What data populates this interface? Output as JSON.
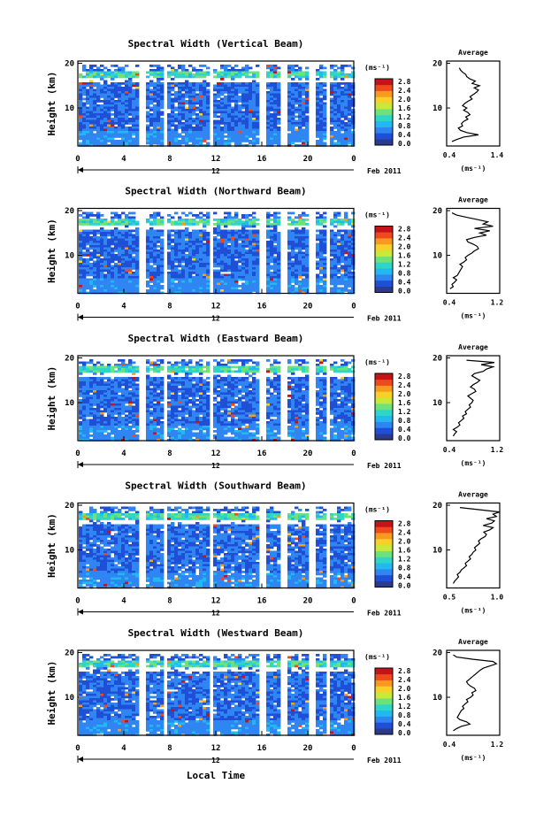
{
  "figure": {
    "xlabel": "Local Time",
    "date_label": "Feb 2011",
    "day_label": "12",
    "colorbar_unit": "(ms⁻¹)",
    "avg_title": "Average",
    "avg_unit": "(ms⁻¹)"
  },
  "colors": {
    "colormap": [
      "#2b3a8f",
      "#1f4fd6",
      "#2f86f2",
      "#22b9f0",
      "#2fd6c8",
      "#6ee27a",
      "#c8e83a",
      "#f7d02a",
      "#f79a1f",
      "#ee4a1c",
      "#c4141a"
    ],
    "no_data": "#ffffff"
  },
  "chart_data": [
    {
      "type": "heatmap",
      "title": "Spectral Width (Vertical Beam)",
      "ylabel": "Height (km)",
      "x_ticks": [
        "0",
        "4",
        "8",
        "12",
        "16",
        "20",
        "0"
      ],
      "xlim": [
        0,
        24
      ],
      "ylim": [
        1.5,
        20.5
      ],
      "y_ticks": [
        "20",
        "10"
      ],
      "colorbar_ticks": [
        "2.8",
        "2.4",
        "2.0",
        "1.6",
        "1.2",
        "0.8",
        "0.4",
        "0.0"
      ],
      "clim": [
        0.0,
        3.0
      ],
      "data_gaps_hours": [
        [
          5.3,
          5.8
        ],
        [
          7.4,
          7.8
        ],
        [
          11.6,
          11.9
        ],
        [
          15.8,
          16.5
        ],
        [
          17.6,
          18.1
        ],
        [
          20.1,
          20.6
        ],
        [
          21.7,
          22.0
        ]
      ],
      "average_profile": {
        "xlim": [
          0.4,
          1.4
        ],
        "x_ticks": [
          "0.4",
          "1.4"
        ],
        "y_ticks": [
          "20",
          "10"
        ],
        "height_km": [
          2.5,
          3,
          3.5,
          4,
          4.5,
          5,
          5.5,
          6,
          6.5,
          7,
          7.5,
          8,
          8.5,
          9,
          9.5,
          10,
          10.5,
          11,
          11.5,
          12,
          12.5,
          13,
          13.5,
          14,
          14.5,
          15,
          15.5,
          16,
          16.5,
          17,
          17.5,
          18,
          18.5,
          19
        ],
        "width_ms": [
          0.5,
          0.6,
          0.72,
          1.0,
          0.78,
          0.66,
          0.62,
          0.7,
          0.68,
          0.72,
          0.8,
          0.76,
          0.84,
          0.8,
          0.72,
          0.78,
          0.7,
          0.74,
          0.8,
          0.88,
          0.84,
          0.9,
          0.96,
          1.0,
          0.92,
          1.02,
          0.88,
          0.94,
          0.84,
          0.78,
          0.76,
          0.7,
          0.66,
          0.64
        ]
      }
    },
    {
      "type": "heatmap",
      "title": "Spectral Width (Northward Beam)",
      "ylabel": "Height (km)",
      "x_ticks": [
        "0",
        "4",
        "8",
        "12",
        "16",
        "20",
        "0"
      ],
      "xlim": [
        0,
        24
      ],
      "ylim": [
        1.5,
        20.5
      ],
      "y_ticks": [
        "20",
        "10"
      ],
      "colorbar_ticks": [
        "2.8",
        "2.4",
        "2.0",
        "1.6",
        "1.2",
        "0.8",
        "0.4",
        "0.0"
      ],
      "clim": [
        0.0,
        3.0
      ],
      "data_gaps_hours": [
        [
          5.3,
          5.8
        ],
        [
          7.4,
          7.8
        ],
        [
          11.6,
          11.9
        ],
        [
          15.8,
          16.5
        ],
        [
          17.6,
          18.1
        ],
        [
          20.1,
          20.6
        ],
        [
          21.7,
          22.0
        ]
      ],
      "average_profile": {
        "xlim": [
          0.4,
          1.2
        ],
        "x_ticks": [
          "0.4",
          "1.2"
        ],
        "y_ticks": [
          "20",
          "10"
        ],
        "height_km": [
          2.5,
          3,
          3.5,
          4,
          4.5,
          5,
          5.5,
          6,
          6.5,
          7,
          7.5,
          8,
          8.5,
          9,
          9.5,
          10,
          10.5,
          11,
          11.5,
          12,
          12.5,
          13,
          13.5,
          14,
          14.5,
          15,
          15.5,
          16,
          16.5,
          17,
          17.5,
          18,
          18.5,
          19,
          19.5
        ],
        "width_ms": [
          0.45,
          0.5,
          0.48,
          0.52,
          0.55,
          0.5,
          0.56,
          0.58,
          0.6,
          0.62,
          0.64,
          0.6,
          0.66,
          0.7,
          0.68,
          0.72,
          0.78,
          0.82,
          0.88,
          0.86,
          0.8,
          0.72,
          0.7,
          0.82,
          1.0,
          0.9,
          1.05,
          0.82,
          1.1,
          0.95,
          1.02,
          0.86,
          0.7,
          0.55,
          0.48
        ]
      }
    },
    {
      "type": "heatmap",
      "title": "Spectral Width (Eastward Beam)",
      "ylabel": "Height (km)",
      "x_ticks": [
        "0",
        "4",
        "8",
        "12",
        "16",
        "20",
        "0"
      ],
      "xlim": [
        0,
        24
      ],
      "ylim": [
        1.5,
        20.5
      ],
      "y_ticks": [
        "20",
        "10"
      ],
      "colorbar_ticks": [
        "2.8",
        "2.4",
        "2.0",
        "1.6",
        "1.2",
        "0.8",
        "0.4",
        "0.0"
      ],
      "clim": [
        0.0,
        3.0
      ],
      "data_gaps_hours": [
        [
          5.3,
          5.8
        ],
        [
          7.4,
          7.8
        ],
        [
          11.6,
          11.9
        ],
        [
          15.8,
          16.5
        ],
        [
          17.6,
          18.1
        ],
        [
          20.1,
          20.6
        ],
        [
          21.7,
          22.0
        ]
      ],
      "average_profile": {
        "xlim": [
          0.4,
          1.2
        ],
        "x_ticks": [
          "0.4",
          "1.2"
        ],
        "y_ticks": [
          "20",
          "10"
        ],
        "height_km": [
          2.5,
          3,
          3.5,
          4,
          4.5,
          5,
          5.5,
          6,
          6.5,
          7,
          7.5,
          8,
          8.5,
          9,
          9.5,
          10,
          10.5,
          11,
          11.5,
          12,
          12.5,
          13,
          13.5,
          14,
          14.5,
          15,
          15.5,
          16,
          16.5,
          17,
          17.5,
          18,
          18.5,
          19,
          19.5
        ],
        "width_ms": [
          0.5,
          0.52,
          0.55,
          0.5,
          0.56,
          0.6,
          0.58,
          0.62,
          0.66,
          0.64,
          0.7,
          0.68,
          0.72,
          0.76,
          0.74,
          0.78,
          0.8,
          0.76,
          0.72,
          0.78,
          0.84,
          0.82,
          0.76,
          0.8,
          0.86,
          0.9,
          0.84,
          0.78,
          0.82,
          0.95,
          1.0,
          1.1,
          0.92,
          1.12,
          0.7
        ]
      }
    },
    {
      "type": "heatmap",
      "title": "Spectral Width (Southward Beam)",
      "ylabel": "Height (km)",
      "x_ticks": [
        "0",
        "4",
        "8",
        "12",
        "16",
        "20",
        "0"
      ],
      "xlim": [
        0,
        24
      ],
      "ylim": [
        1.5,
        20.5
      ],
      "y_ticks": [
        "20",
        "10"
      ],
      "colorbar_ticks": [
        "2.8",
        "2.4",
        "2.0",
        "1.6",
        "1.2",
        "0.8",
        "0.4",
        "0.0"
      ],
      "clim": [
        0.0,
        3.0
      ],
      "data_gaps_hours": [
        [
          5.3,
          5.8
        ],
        [
          7.4,
          7.8
        ],
        [
          11.6,
          11.9
        ],
        [
          15.8,
          16.5
        ],
        [
          17.6,
          18.1
        ],
        [
          20.1,
          20.6
        ],
        [
          21.7,
          22.0
        ]
      ],
      "average_profile": {
        "xlim": [
          0.4,
          1.2
        ],
        "x_ticks": [
          "0.5",
          "1.0"
        ],
        "y_ticks": [
          "20",
          "10"
        ],
        "height_km": [
          2.5,
          3,
          3.5,
          4,
          4.5,
          5,
          5.5,
          6,
          6.5,
          7,
          7.5,
          8,
          8.5,
          9,
          9.5,
          10,
          10.5,
          11,
          11.5,
          12,
          12.5,
          13,
          13.5,
          14,
          14.5,
          15,
          15.5,
          16,
          16.5,
          17,
          17.5,
          18,
          18.5,
          19,
          19.5
        ],
        "width_ms": [
          0.5,
          0.52,
          0.55,
          0.58,
          0.56,
          0.6,
          0.62,
          0.66,
          0.7,
          0.68,
          0.72,
          0.76,
          0.74,
          0.78,
          0.8,
          0.84,
          0.82,
          0.86,
          0.9,
          0.88,
          0.92,
          0.98,
          1.0,
          0.96,
          1.05,
          1.1,
          0.95,
          1.08,
          1.12,
          1.0,
          1.15,
          1.1,
          1.2,
          0.9,
          0.6
        ]
      }
    },
    {
      "type": "heatmap",
      "title": "Spectral Width (Westward Beam)",
      "ylabel": "Height (km)",
      "x_ticks": [
        "0",
        "4",
        "8",
        "12",
        "16",
        "20",
        "0"
      ],
      "xlim": [
        0,
        24
      ],
      "ylim": [
        1.5,
        20.5
      ],
      "y_ticks": [
        "20",
        "10"
      ],
      "colorbar_ticks": [
        "2.8",
        "2.4",
        "2.0",
        "1.6",
        "1.2",
        "0.8",
        "0.4",
        "0.0"
      ],
      "clim": [
        0.0,
        3.0
      ],
      "data_gaps_hours": [
        [
          5.3,
          5.8
        ],
        [
          7.4,
          7.8
        ],
        [
          11.6,
          11.9
        ],
        [
          15.8,
          16.5
        ],
        [
          17.6,
          18.1
        ],
        [
          20.1,
          20.6
        ],
        [
          21.7,
          22.0
        ]
      ],
      "average_profile": {
        "xlim": [
          0.4,
          1.2
        ],
        "x_ticks": [
          "0.4",
          "1.2"
        ],
        "y_ticks": [
          "20",
          "10"
        ],
        "height_km": [
          2.5,
          3,
          3.5,
          4,
          4.5,
          5,
          5.5,
          6,
          6.5,
          7,
          7.5,
          8,
          8.5,
          9,
          9.5,
          10,
          10.5,
          11,
          11.5,
          12,
          12.5,
          13,
          13.5,
          14,
          14.5,
          15,
          15.5,
          16,
          16.5,
          17,
          17.5,
          18,
          18.5,
          19,
          19.5
        ],
        "width_ms": [
          0.5,
          0.55,
          0.62,
          0.75,
          0.7,
          0.6,
          0.56,
          0.58,
          0.6,
          0.62,
          0.66,
          0.64,
          0.68,
          0.72,
          0.7,
          0.76,
          0.8,
          0.78,
          0.84,
          0.82,
          0.76,
          0.72,
          0.7,
          0.74,
          0.78,
          0.82,
          0.86,
          0.9,
          0.95,
          1.05,
          1.15,
          1.1,
          0.8,
          0.55,
          0.5
        ]
      }
    }
  ]
}
